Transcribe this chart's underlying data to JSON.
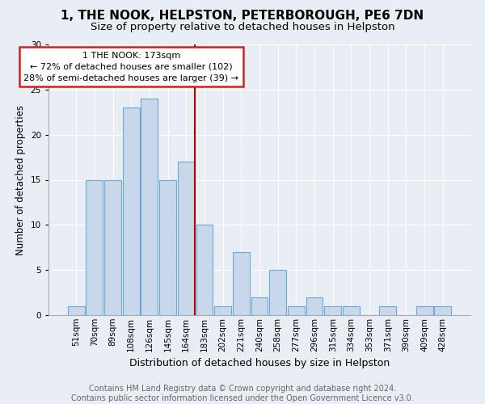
{
  "title": "1, THE NOOK, HELPSTON, PETERBOROUGH, PE6 7DN",
  "subtitle": "Size of property relative to detached houses in Helpston",
  "xlabel": "Distribution of detached houses by size in Helpston",
  "ylabel": "Number of detached properties",
  "footer_line1": "Contains HM Land Registry data © Crown copyright and database right 2024.",
  "footer_line2": "Contains public sector information licensed under the Open Government Licence v3.0.",
  "bin_labels": [
    "51sqm",
    "70sqm",
    "89sqm",
    "108sqm",
    "126sqm",
    "145sqm",
    "164sqm",
    "183sqm",
    "202sqm",
    "221sqm",
    "240sqm",
    "258sqm",
    "277sqm",
    "296sqm",
    "315sqm",
    "334sqm",
    "353sqm",
    "371sqm",
    "390sqm",
    "409sqm",
    "428sqm"
  ],
  "counts": [
    1,
    15,
    15,
    23,
    24,
    15,
    17,
    10,
    1,
    7,
    2,
    5,
    1,
    2,
    1,
    1,
    0,
    1,
    0,
    1,
    1
  ],
  "bar_color": "#c8d8ea",
  "bar_edge_color": "#6aaad4",
  "vline_x_index": 6.47,
  "vline_color": "#aa0000",
  "annotation_line1": "1 THE NOOK: 173sqm",
  "annotation_line2": "← 72% of detached houses are smaller (102)",
  "annotation_line3": "28% of semi-detached houses are larger (39) →",
  "annotation_box_color": "#ffffff",
  "annotation_box_edge": "#cc2222",
  "ylim": [
    0,
    30
  ],
  "yticks": [
    0,
    5,
    10,
    15,
    20,
    25,
    30
  ],
  "background_color": "#e8eef4",
  "grid_color": "#ffffff",
  "title_fontsize": 11,
  "subtitle_fontsize": 9.5,
  "xlabel_fontsize": 9,
  "ylabel_fontsize": 8.5,
  "tick_fontsize": 7.5,
  "footer_fontsize": 7,
  "annot_fontsize": 8
}
